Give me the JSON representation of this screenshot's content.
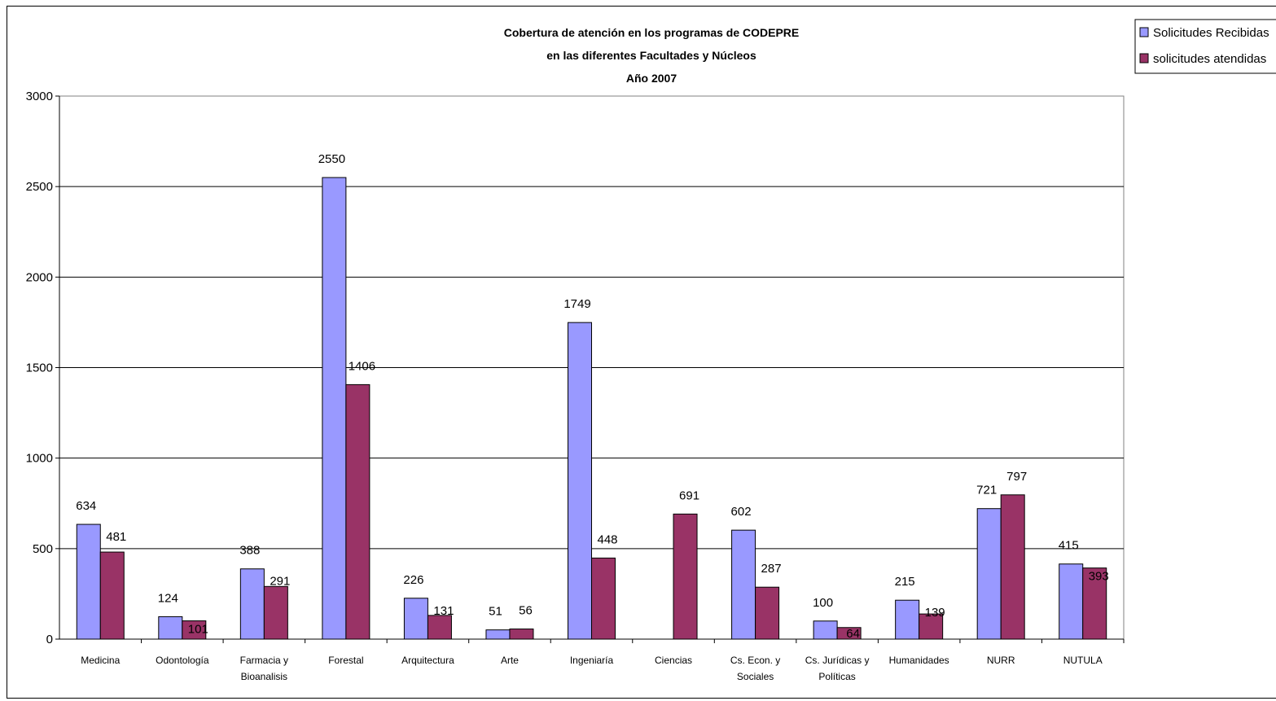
{
  "chart_data": {
    "type": "bar",
    "title": [
      "Cobertura de atención en los programas de CODEPRE",
      "en las diferentes Facultades y Núcleos",
      "Año 2007"
    ],
    "xlabel": "",
    "ylabel": "",
    "ylim": [
      0,
      3000
    ],
    "yticks": [
      0,
      500,
      1000,
      1500,
      2000,
      2500,
      3000
    ],
    "grid": true,
    "legend_position": "top-right",
    "categories": [
      [
        "Medicina"
      ],
      [
        "Odontología"
      ],
      [
        "Farmacia y",
        "Bioanalisis"
      ],
      [
        "Forestal"
      ],
      [
        "Arquitectura"
      ],
      [
        "Arte"
      ],
      [
        "Ingeniaría"
      ],
      [
        "Ciencias"
      ],
      [
        "Cs. Econ. y",
        "Sociales"
      ],
      [
        "Cs. Jurídicas y",
        "Políticas"
      ],
      [
        "Humanidades"
      ],
      [
        "NURR"
      ],
      [
        "NUTULA"
      ]
    ],
    "series": [
      {
        "name": "Solicitudes Recibidas",
        "color": "#9999ff",
        "values": [
          634,
          124,
          388,
          2550,
          226,
          51,
          1749,
          null,
          602,
          100,
          215,
          721,
          415
        ]
      },
      {
        "name": "solicitudes atendidas",
        "color": "#993366",
        "values": [
          481,
          101,
          291,
          1406,
          131,
          56,
          448,
          691,
          287,
          64,
          139,
          797,
          393
        ]
      }
    ]
  }
}
